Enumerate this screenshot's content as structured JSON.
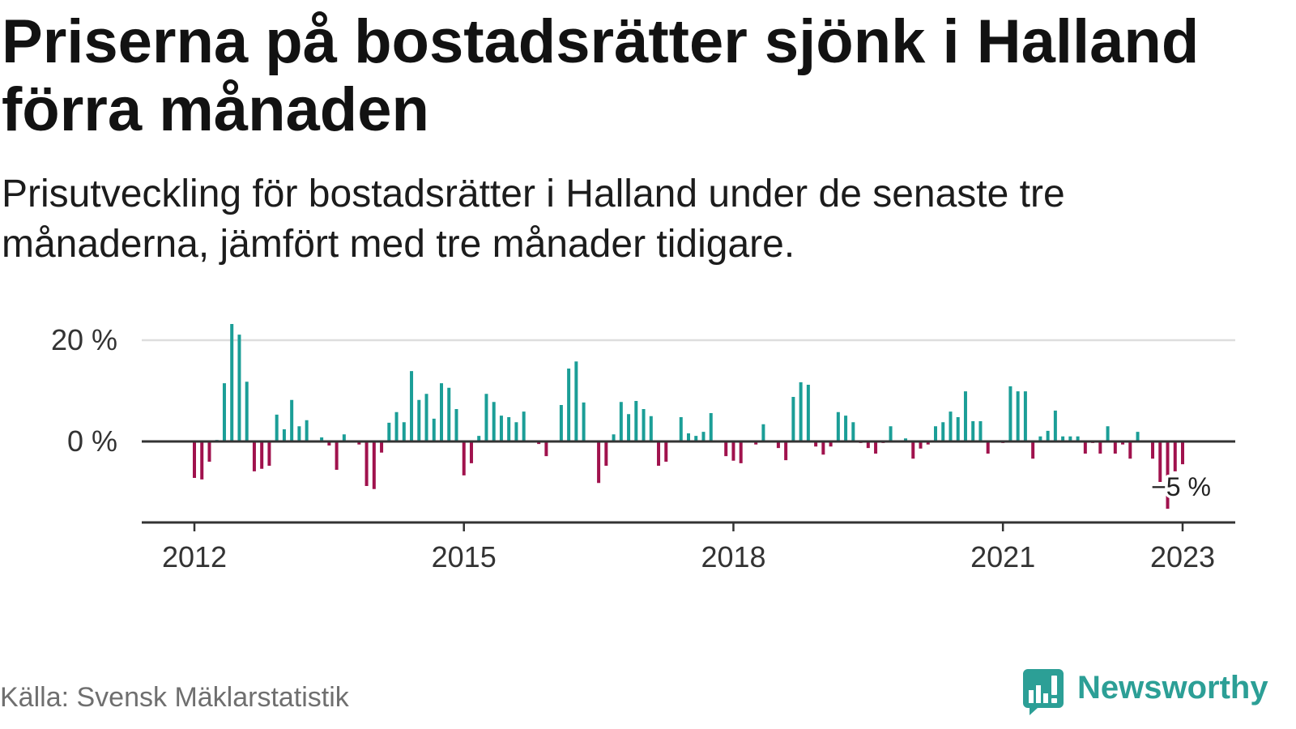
{
  "chart_data": {
    "type": "bar",
    "title_lines": [
      "Priserna på bostadsrätter sjönk i Halland",
      "förra månaden"
    ],
    "subtitle_lines": [
      "Prisutveckling för bostadsrätter i Halland under de senaste tre",
      "månaderna, jämfört med tre månader tidigare."
    ],
    "x": [
      "2012-01",
      "2012-02",
      "2012-03",
      "2012-04",
      "2012-05",
      "2012-06",
      "2012-07",
      "2012-08",
      "2012-09",
      "2012-10",
      "2012-11",
      "2012-12",
      "2013-01",
      "2013-02",
      "2013-03",
      "2013-04",
      "2013-05",
      "2013-06",
      "2013-07",
      "2013-08",
      "2013-09",
      "2013-10",
      "2013-11",
      "2013-12",
      "2014-01",
      "2014-02",
      "2014-03",
      "2014-04",
      "2014-05",
      "2014-06",
      "2014-07",
      "2014-08",
      "2014-09",
      "2014-10",
      "2014-11",
      "2014-12",
      "2015-01",
      "2015-02",
      "2015-03",
      "2015-04",
      "2015-05",
      "2015-06",
      "2015-07",
      "2015-08",
      "2015-09",
      "2015-10",
      "2015-11",
      "2015-12",
      "2016-01",
      "2016-02",
      "2016-03",
      "2016-04",
      "2016-05",
      "2016-06",
      "2016-07",
      "2016-08",
      "2016-09",
      "2016-10",
      "2016-11",
      "2016-12",
      "2017-01",
      "2017-02",
      "2017-03",
      "2017-04",
      "2017-05",
      "2017-06",
      "2017-07",
      "2017-08",
      "2017-09",
      "2017-10",
      "2017-11",
      "2017-12",
      "2018-01",
      "2018-02",
      "2018-03",
      "2018-04",
      "2018-05",
      "2018-06",
      "2018-07",
      "2018-08",
      "2018-09",
      "2018-10",
      "2018-11",
      "2018-12",
      "2019-01",
      "2019-02",
      "2019-03",
      "2019-04",
      "2019-05",
      "2019-06",
      "2019-07",
      "2019-08",
      "2019-09",
      "2019-10",
      "2019-11",
      "2019-12",
      "2020-01",
      "2020-02",
      "2020-03",
      "2020-04",
      "2020-05",
      "2020-06",
      "2020-07",
      "2020-08",
      "2020-09",
      "2020-10",
      "2020-11",
      "2020-12",
      "2021-01",
      "2021-02",
      "2021-03",
      "2021-04",
      "2021-05",
      "2021-06",
      "2021-07",
      "2021-08",
      "2021-09",
      "2021-10",
      "2021-11",
      "2021-12",
      "2022-01",
      "2022-02",
      "2022-03",
      "2022-04",
      "2022-05",
      "2022-06",
      "2022-07",
      "2022-08",
      "2022-09",
      "2022-10",
      "2022-11",
      "2022-12",
      "2023-01"
    ],
    "values": [
      -7.2,
      -7.5,
      -4.0,
      0.3,
      11.5,
      23.2,
      21.1,
      11.8,
      -5.9,
      -5.4,
      -4.8,
      5.3,
      2.4,
      8.2,
      3.0,
      4.2,
      0.0,
      0.8,
      -0.8,
      -5.6,
      1.4,
      0.0,
      -0.6,
      -8.8,
      -9.4,
      -2.2,
      3.7,
      5.8,
      3.8,
      13.9,
      8.2,
      9.4,
      4.5,
      11.5,
      10.6,
      6.4,
      -6.7,
      -4.3,
      1.1,
      9.4,
      7.8,
      5.1,
      4.8,
      3.8,
      5.9,
      0.0,
      -0.5,
      -2.9,
      0.0,
      7.2,
      14.4,
      15.8,
      7.7,
      0.0,
      -8.2,
      -4.8,
      1.4,
      7.8,
      5.4,
      8.0,
      6.4,
      5.0,
      -4.8,
      -4.0,
      0.0,
      4.8,
      1.6,
      1.1,
      1.9,
      5.6,
      0.0,
      -2.9,
      -3.8,
      -4.3,
      0.0,
      -0.6,
      3.4,
      0.0,
      -1.3,
      -3.7,
      8.8,
      11.7,
      11.2,
      -1.0,
      -2.6,
      -1.0,
      5.8,
      5.1,
      3.8,
      -0.3,
      -1.3,
      -2.4,
      -0.3,
      3.0,
      0.0,
      0.6,
      -3.4,
      -1.4,
      -0.6,
      3.0,
      3.8,
      5.9,
      4.8,
      9.9,
      4.0,
      4.0,
      -2.4,
      0.0,
      -0.3,
      10.9,
      9.9,
      9.9,
      -3.4,
      1.0,
      2.1,
      6.1,
      1.0,
      1.0,
      1.0,
      -2.4,
      -0.3,
      -2.4,
      3.0,
      -2.4,
      -0.6,
      -3.4,
      1.9,
      0.0,
      -3.4,
      -8.0,
      -13.3,
      -5.9,
      -4.5
    ],
    "ylim": [
      -16,
      24
    ],
    "yticks": [
      {
        "value": 0,
        "label": "0 %"
      },
      {
        "value": 20,
        "label": "20 %"
      }
    ],
    "xticks": [
      {
        "date": "2012-01",
        "label": "2012"
      },
      {
        "date": "2015-01",
        "label": "2015"
      },
      {
        "date": "2018-01",
        "label": "2018"
      },
      {
        "date": "2021-01",
        "label": "2021"
      },
      {
        "date": "2023-01",
        "label": "2023"
      }
    ],
    "grid": true,
    "annotation": {
      "x": "2023-01",
      "text": "−5 %"
    },
    "colors": {
      "positive": "#1b9e97",
      "negative": "#a0124d"
    }
  },
  "footer": {
    "source": "Källa: Svensk Mäklarstatistik",
    "brand": "Newsworthy",
    "brand_color": "#2c9f96"
  }
}
